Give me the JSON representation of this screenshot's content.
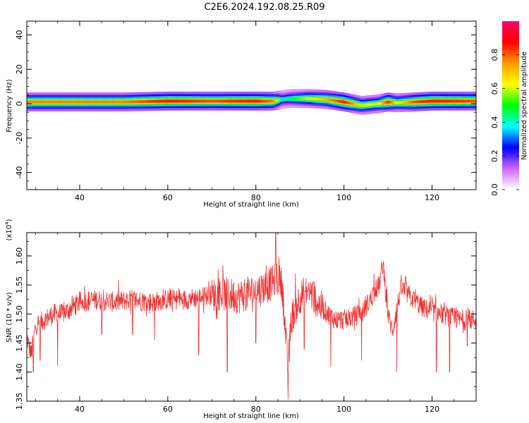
{
  "title": "C2E6.2024.192.08.25.R09",
  "chart_data": [
    {
      "type": "heatmap",
      "xlabel": "Height of straight line (km)",
      "ylabel": "Frequency (Hz)",
      "xlim": [
        28,
        130
      ],
      "ylim": [
        -50,
        48
      ],
      "x_ticks": [
        40,
        60,
        80,
        100,
        120
      ],
      "y_ticks": [
        -40,
        -20,
        0,
        20,
        40
      ],
      "colorbar": {
        "label": "Normalized spectral amplitude",
        "range": [
          0,
          1
        ],
        "ticks": [
          "0.0",
          "0.2",
          "0.4",
          "0.6",
          "0.8"
        ],
        "colormap": [
          "#ffffff",
          "#cc66ff",
          "#0000ff",
          "#00ffff",
          "#00ff00",
          "#ffff00",
          "#ff9900",
          "#ff0000",
          "#ff0066"
        ]
      },
      "ridge": {
        "x": [
          28,
          40,
          50,
          60,
          70,
          80,
          84,
          86,
          88,
          92,
          96,
          100,
          104,
          108,
          110,
          112,
          116,
          120,
          130
        ],
        "center_hz": [
          1,
          1,
          1,
          1.5,
          1.5,
          1.5,
          1.5,
          2.5,
          3,
          3,
          2.5,
          1,
          -1,
          0,
          1,
          0.5,
          1,
          1.5,
          1.5
        ],
        "peak": [
          0.75,
          0.75,
          0.75,
          0.85,
          0.8,
          0.85,
          0.75,
          0.4,
          0.45,
          0.6,
          0.7,
          0.85,
          0.6,
          0.6,
          0.85,
          0.6,
          0.8,
          0.85,
          0.8
        ]
      }
    },
    {
      "type": "line",
      "xlabel": "Height of straight line (km)",
      "ylabel": "SNR (10 * v/v)",
      "yscale_label": "(x10",
      "yscale_exp": "4",
      "yscale_close": ")",
      "xlim": [
        28,
        130
      ],
      "ylim": [
        1.35,
        1.64
      ],
      "x_ticks": [
        40,
        60,
        80,
        100,
        120
      ],
      "y_ticks": [
        "1.35",
        "1.40",
        "1.45",
        "1.50",
        "1.55",
        "1.60"
      ],
      "series": [
        {
          "color": "#ee3333",
          "x": [
            28,
            29,
            30,
            32,
            34,
            36,
            38,
            40,
            44,
            48,
            52,
            56,
            60,
            64,
            68,
            72,
            76,
            80,
            83,
            85,
            86,
            87.3,
            88,
            90,
            92,
            95,
            98,
            100,
            104,
            108,
            108.8,
            110,
            111,
            112,
            113,
            115,
            118,
            122,
            126,
            130
          ],
          "y": [
            1.46,
            1.43,
            1.48,
            1.49,
            1.5,
            1.5,
            1.51,
            1.52,
            1.525,
            1.52,
            1.525,
            1.52,
            1.525,
            1.525,
            1.53,
            1.535,
            1.53,
            1.54,
            1.55,
            1.56,
            1.55,
            1.4,
            1.49,
            1.53,
            1.54,
            1.51,
            1.49,
            1.49,
            1.5,
            1.55,
            1.585,
            1.5,
            1.47,
            1.51,
            1.545,
            1.53,
            1.51,
            1.5,
            1.49,
            1.49
          ]
        }
      ],
      "spikes": [
        {
          "x": 29.5,
          "y": 1.4
        },
        {
          "x": 31,
          "y": 1.42
        },
        {
          "x": 35,
          "y": 1.41
        },
        {
          "x": 45,
          "y": 1.465
        },
        {
          "x": 52,
          "y": 1.465
        },
        {
          "x": 57,
          "y": 1.455
        },
        {
          "x": 67,
          "y": 1.43
        },
        {
          "x": 73.5,
          "y": 1.4
        },
        {
          "x": 80,
          "y": 1.45
        },
        {
          "x": 84.5,
          "y": 1.64
        },
        {
          "x": 87.3,
          "y": 1.353
        },
        {
          "x": 91,
          "y": 1.44
        },
        {
          "x": 97,
          "y": 1.41
        },
        {
          "x": 104,
          "y": 1.42
        },
        {
          "x": 109,
          "y": 1.59
        },
        {
          "x": 112,
          "y": 1.4
        },
        {
          "x": 114,
          "y": 1.565
        },
        {
          "x": 121,
          "y": 1.4
        },
        {
          "x": 124,
          "y": 1.4
        },
        {
          "x": 128,
          "y": 1.445
        }
      ]
    }
  ]
}
